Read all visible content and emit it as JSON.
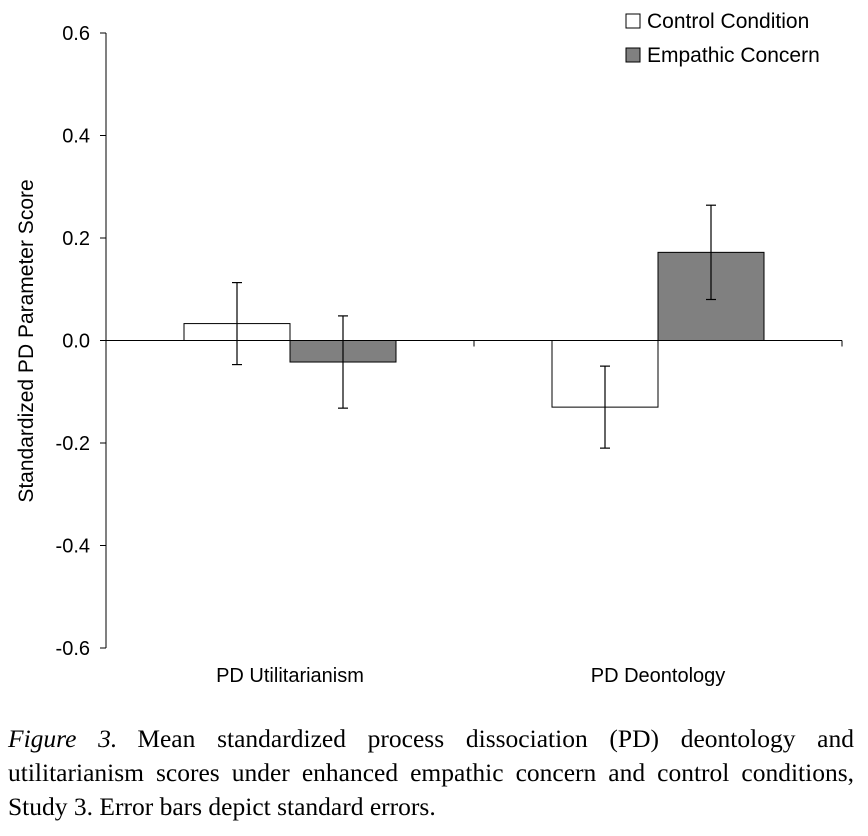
{
  "chart_data": {
    "type": "bar",
    "ylabel": "Standardized PD Parameter Score",
    "ylim": [
      -0.6,
      0.6
    ],
    "yticks": [
      0.6,
      0.4,
      0.2,
      0.0,
      -0.2,
      -0.4,
      -0.6
    ],
    "ytick_labels": [
      "0.6",
      "0.4",
      "0.2",
      "0.0",
      "-0.2",
      "-0.4",
      "-0.6"
    ],
    "categories": [
      "PD Utilitarianism",
      "PD Deontology"
    ],
    "series": [
      {
        "name": "Control Condition",
        "color": "#ffffff",
        "values": [
          0.033,
          -0.13
        ],
        "errors": [
          0.08,
          0.08
        ]
      },
      {
        "name": "Empathic Concern",
        "color": "#808080",
        "values": [
          -0.042,
          0.172
        ],
        "errors": [
          0.09,
          0.092
        ]
      }
    ],
    "legend_position": "top-right",
    "grid": false
  },
  "caption": {
    "label": "Figure 3.",
    "text": "Mean standardized process dissociation (PD) deontology and utilitarianism scores under enhanced empathic concern and control conditions, Study 3. Error bars depict standard errors."
  }
}
